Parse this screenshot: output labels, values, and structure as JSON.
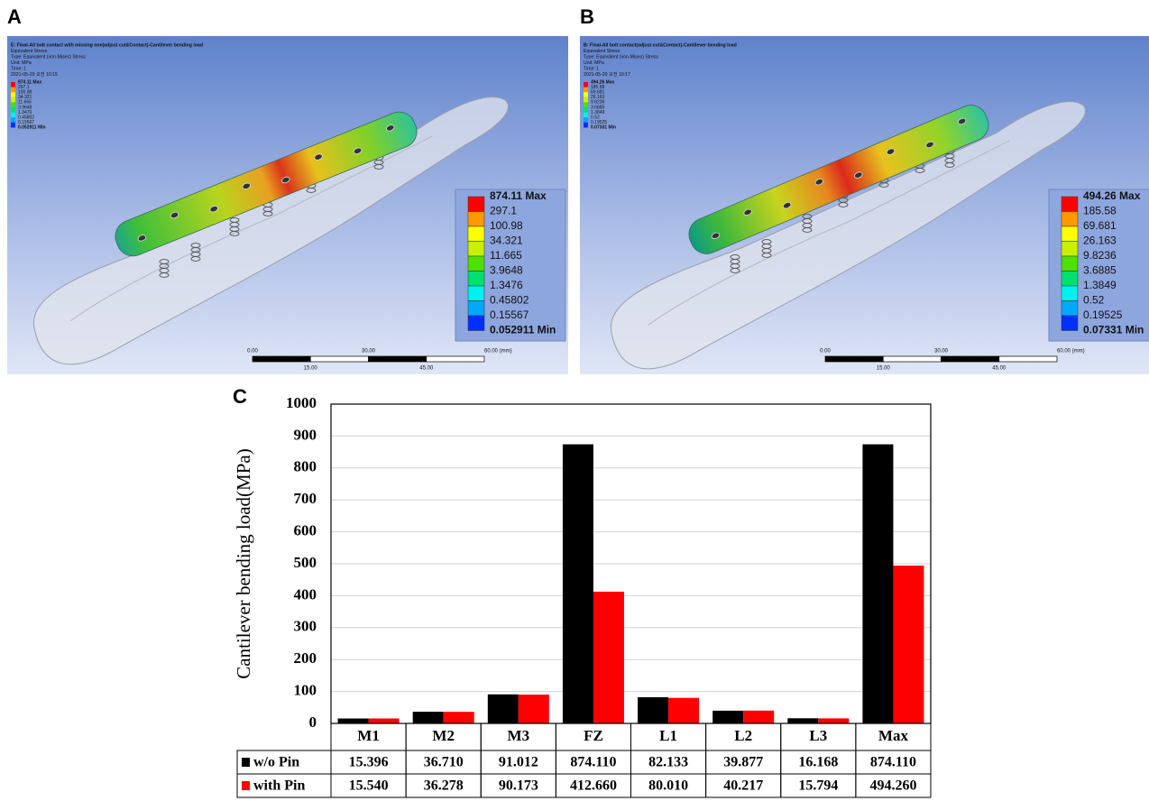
{
  "panel_a": {
    "panel_label": "A",
    "header": [
      "E: Final-All bolt contact with missing one(adjust cut&Contact)-Cantilever bending load",
      "Equivalent Stress",
      "Type: Equivalent (von-Mises) Stress",
      "Unit: MPa",
      "Time: 1",
      "2021-05-20 오전 10:15"
    ],
    "legend": [
      "874.11 Max",
      "297.1",
      "100.98",
      "34.321",
      "11.665",
      "3.9648",
      "1.3476",
      "0.45802",
      "0.15567",
      "0.052911 Min"
    ],
    "scale_top": [
      "0.00",
      "30.00",
      "60.00 (mm)"
    ],
    "scale_bottom": [
      "15.00",
      "45.00"
    ]
  },
  "panel_b": {
    "panel_label": "B",
    "header": [
      "B: Final-All bolt contact(adjust cut&Contact)-Cantilever bending load",
      "Equivalent Stress",
      "Type: Equivalent (von-Mises) Stress",
      "Unit: MPa",
      "Time: 1",
      "2021-05-20 오전 10:17"
    ],
    "legend": [
      "494.26 Max",
      "185.58",
      "69.681",
      "26.163",
      "9.8236",
      "3.6885",
      "1.3849",
      "0.52",
      "0.19525",
      "0.07331 Min"
    ],
    "scale_top": [
      "0.00",
      "30.00",
      "60.00 (mm)"
    ],
    "scale_bottom": [
      "15.00",
      "45.00"
    ]
  },
  "chart_data": {
    "panel_label": "C",
    "type": "bar",
    "y_label": "Cantilever bending load(MPa)",
    "categories": [
      "M1",
      "M2",
      "M3",
      "FZ",
      "L1",
      "L2",
      "L3",
      "Max"
    ],
    "series": [
      {
        "name": "w/o Pin",
        "color": "#000000",
        "values": [
          15.396,
          36.71,
          91.012,
          874.11,
          82.133,
          39.877,
          16.168,
          874.11
        ],
        "value_labels": [
          "15.396",
          "36.710",
          "91.012",
          "874.110",
          "82.133",
          "39.877",
          "16.168",
          "874.110"
        ]
      },
      {
        "name": "with Pin",
        "color": "#ff0000",
        "values": [
          15.54,
          36.278,
          90.173,
          412.66,
          80.01,
          40.217,
          15.794,
          494.26
        ],
        "value_labels": [
          "15.540",
          "36.278",
          "90.173",
          "412.660",
          "80.010",
          "40.217",
          "15.794",
          "494.260"
        ]
      }
    ],
    "ylim": [
      0,
      1000
    ],
    "yticks": [
      0,
      100,
      200,
      300,
      400,
      500,
      600,
      700,
      800,
      900,
      1000
    ],
    "grid": true
  }
}
